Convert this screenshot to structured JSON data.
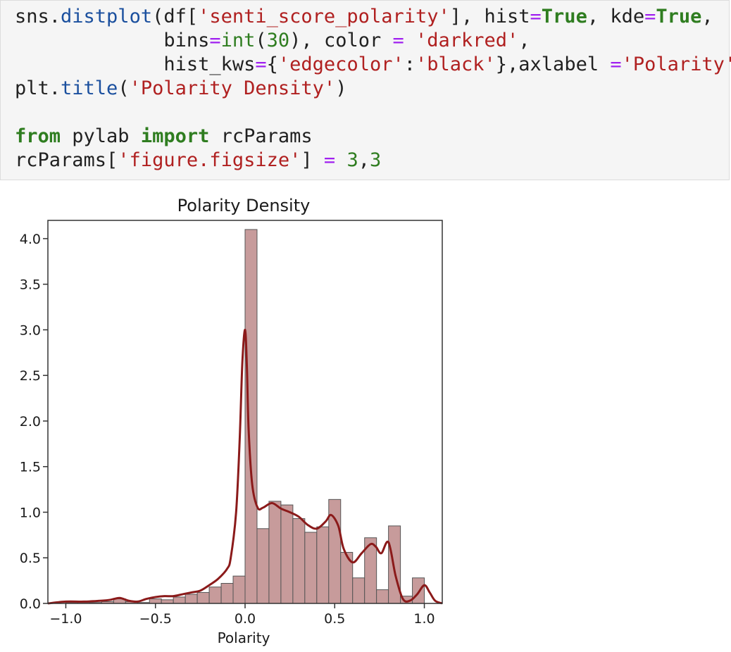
{
  "code_cell": {
    "lines": [
      [
        {
          "t": "sns.",
          "c": ""
        },
        {
          "t": "distplot",
          "c": "fn"
        },
        {
          "t": "(df[",
          "c": ""
        },
        {
          "t": "'senti_score_polarity'",
          "c": "str"
        },
        {
          "t": "], hist",
          "c": ""
        },
        {
          "t": "=",
          "c": "op"
        },
        {
          "t": "True",
          "c": "kw"
        },
        {
          "t": ", kde",
          "c": ""
        },
        {
          "t": "=",
          "c": "op"
        },
        {
          "t": "True",
          "c": "kw"
        },
        {
          "t": ",",
          "c": ""
        }
      ],
      [
        {
          "t": "             bins",
          "c": ""
        },
        {
          "t": "=",
          "c": "op"
        },
        {
          "t": "int",
          "c": "num"
        },
        {
          "t": "(",
          "c": ""
        },
        {
          "t": "30",
          "c": "num"
        },
        {
          "t": "), color ",
          "c": ""
        },
        {
          "t": "=",
          "c": "op"
        },
        {
          "t": " ",
          "c": ""
        },
        {
          "t": "'darkred'",
          "c": "str"
        },
        {
          "t": ",",
          "c": ""
        }
      ],
      [
        {
          "t": "             hist_kws",
          "c": ""
        },
        {
          "t": "=",
          "c": "op"
        },
        {
          "t": "{",
          "c": ""
        },
        {
          "t": "'edgecolor'",
          "c": "str"
        },
        {
          "t": ":",
          "c": ""
        },
        {
          "t": "'black'",
          "c": "str"
        },
        {
          "t": "},axlabel ",
          "c": ""
        },
        {
          "t": "=",
          "c": "op"
        },
        {
          "t": "'Polarity'",
          "c": "str"
        },
        {
          "t": ")",
          "c": ""
        }
      ],
      [
        {
          "t": "plt.",
          "c": ""
        },
        {
          "t": "title",
          "c": "fn"
        },
        {
          "t": "(",
          "c": ""
        },
        {
          "t": "'Polarity Density'",
          "c": "str"
        },
        {
          "t": ")",
          "c": ""
        }
      ],
      [],
      [
        {
          "t": "from",
          "c": "kw"
        },
        {
          "t": " pylab ",
          "c": ""
        },
        {
          "t": "import",
          "c": "kw"
        },
        {
          "t": " rcParams",
          "c": ""
        }
      ],
      [
        {
          "t": "rcParams[",
          "c": ""
        },
        {
          "t": "'figure.figsize'",
          "c": "str"
        },
        {
          "t": "] ",
          "c": ""
        },
        {
          "t": "=",
          "c": "op"
        },
        {
          "t": " ",
          "c": ""
        },
        {
          "t": "3",
          "c": "num"
        },
        {
          "t": ",",
          "c": ""
        },
        {
          "t": "3",
          "c": "num"
        }
      ]
    ]
  },
  "chart_data": {
    "type": "bar",
    "title": "Polarity Density",
    "xlabel": "Polarity",
    "ylabel": "",
    "xlim": [
      -1.1,
      1.1
    ],
    "ylim": [
      0,
      4.2
    ],
    "xticks": [
      -1.0,
      -0.5,
      0.0,
      0.5,
      1.0
    ],
    "xtick_labels": [
      "−1.0",
      "−0.5",
      "0.0",
      "0.5",
      "1.0"
    ],
    "yticks": [
      0.0,
      0.5,
      1.0,
      1.5,
      2.0,
      2.5,
      3.0,
      3.5,
      4.0
    ],
    "ytick_labels": [
      "0.0",
      "0.5",
      "1.0",
      "1.5",
      "2.0",
      "2.5",
      "3.0",
      "3.5",
      "4.0"
    ],
    "grid": false,
    "bar_color": "#c79b9b",
    "edge_color": "#555555",
    "kde_color": "#8b1a1a",
    "bin_edges": [
      -1.0,
      -0.9333,
      -0.8667,
      -0.8,
      -0.7333,
      -0.6667,
      -0.6,
      -0.5333,
      -0.4667,
      -0.4,
      -0.3333,
      -0.2667,
      -0.2,
      -0.1333,
      -0.0667,
      0.0,
      0.0667,
      0.1333,
      0.2,
      0.2667,
      0.3333,
      0.4,
      0.4667,
      0.5333,
      0.6,
      0.6667,
      0.7333,
      0.8,
      0.8667,
      0.9333,
      1.0
    ],
    "densities": [
      0.01,
      0.01,
      0.01,
      0.02,
      0.05,
      0.02,
      0.01,
      0.05,
      0.04,
      0.07,
      0.1,
      0.12,
      0.18,
      0.22,
      0.3,
      4.1,
      0.82,
      1.12,
      1.08,
      0.93,
      0.78,
      0.84,
      1.14,
      0.56,
      0.28,
      0.72,
      0.15,
      0.85,
      0.08,
      0.28
    ],
    "kde": {
      "x": [
        -1.1,
        -1.0,
        -0.9,
        -0.8,
        -0.75,
        -0.7,
        -0.65,
        -0.6,
        -0.55,
        -0.5,
        -0.45,
        -0.4,
        -0.35,
        -0.3,
        -0.25,
        -0.2,
        -0.15,
        -0.1,
        -0.08,
        -0.05,
        -0.03,
        -0.015,
        0.0,
        0.01,
        0.02,
        0.04,
        0.07,
        0.1,
        0.15,
        0.2,
        0.25,
        0.3,
        0.35,
        0.4,
        0.45,
        0.48,
        0.52,
        0.55,
        0.6,
        0.65,
        0.7,
        0.73,
        0.76,
        0.8,
        0.84,
        0.88,
        0.92,
        0.96,
        1.0,
        1.03,
        1.06,
        1.1
      ],
      "y": [
        0.0,
        0.02,
        0.02,
        0.03,
        0.04,
        0.06,
        0.03,
        0.02,
        0.05,
        0.07,
        0.08,
        0.08,
        0.1,
        0.12,
        0.14,
        0.2,
        0.27,
        0.38,
        0.5,
        1.0,
        1.8,
        2.65,
        3.0,
        2.6,
        1.9,
        1.3,
        1.05,
        1.05,
        1.1,
        1.04,
        1.0,
        0.95,
        0.86,
        0.82,
        0.9,
        0.97,
        0.85,
        0.6,
        0.45,
        0.55,
        0.65,
        0.62,
        0.55,
        0.67,
        0.3,
        0.05,
        0.03,
        0.1,
        0.2,
        0.12,
        0.03,
        0.0
      ]
    }
  }
}
